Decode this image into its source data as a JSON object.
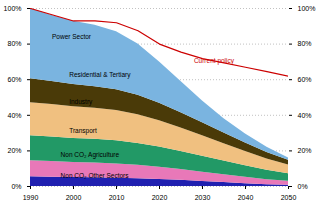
{
  "chart_data": {
    "type": "area",
    "stacked": true,
    "grid": true,
    "x": [
      1990,
      1995,
      2000,
      2005,
      2010,
      2015,
      2020,
      2025,
      2030,
      2035,
      2040,
      2045,
      2050
    ],
    "xlim": [
      1990,
      2050
    ],
    "xticks": [
      1990,
      2000,
      2010,
      2020,
      2030,
      2040,
      2050
    ],
    "ylim": [
      0.0,
      1.0
    ],
    "yticks": [
      {
        "value": 0.0,
        "label": "0%"
      },
      {
        "value": 0.2,
        "label": "20%"
      },
      {
        "value": 0.4,
        "label": "40%"
      },
      {
        "value": 0.6,
        "label": "60%"
      },
      {
        "value": 0.8,
        "label": "80%"
      },
      {
        "value": 1.0,
        "label": "100%"
      }
    ],
    "y2lim": [
      0.0,
      1.0
    ],
    "y2ticks": [
      {
        "value": 0.0,
        "label": "0%"
      },
      {
        "value": 0.2,
        "label": "20%"
      },
      {
        "value": 0.4,
        "label": "40%"
      },
      {
        "value": 0.6,
        "label": "60%"
      },
      {
        "value": 0.8,
        "label": "80%"
      },
      {
        "value": 1.0,
        "label": "100%"
      }
    ],
    "series": [
      {
        "name": "Non CO₂ Other Sectors",
        "type": "area",
        "color": "#2020b0",
        "values": [
          0.055,
          0.052,
          0.05,
          0.049,
          0.047,
          0.044,
          0.04,
          0.035,
          0.028,
          0.022,
          0.016,
          0.01,
          0.007
        ]
      },
      {
        "name": "Non CO₂ Agriculture",
        "type": "area",
        "color": "#e878b8",
        "values": [
          0.09,
          0.088,
          0.085,
          0.083,
          0.08,
          0.075,
          0.068,
          0.06,
          0.052,
          0.044,
          0.036,
          0.028,
          0.022
        ]
      },
      {
        "name": "Transport",
        "type": "area",
        "color": "#229966",
        "values": [
          0.14,
          0.138,
          0.135,
          0.133,
          0.13,
          0.123,
          0.114,
          0.102,
          0.09,
          0.077,
          0.065,
          0.053,
          0.042
        ]
      },
      {
        "name": "Industry",
        "type": "area",
        "color": "#f0c080",
        "values": [
          0.185,
          0.182,
          0.178,
          0.174,
          0.17,
          0.161,
          0.148,
          0.132,
          0.115,
          0.097,
          0.08,
          0.064,
          0.05
        ]
      },
      {
        "name": "Residential & Tertiary",
        "type": "area",
        "color": "#4a3a08",
        "values": [
          0.135,
          0.13,
          0.125,
          0.122,
          0.117,
          0.109,
          0.098,
          0.086,
          0.073,
          0.06,
          0.047,
          0.036,
          0.026
        ]
      },
      {
        "name": "Power Sector",
        "type": "area",
        "color": "#7ab4e0",
        "values": [
          0.395,
          0.37,
          0.355,
          0.345,
          0.326,
          0.288,
          0.232,
          0.175,
          0.122,
          0.08,
          0.051,
          0.029,
          0.013
        ]
      },
      {
        "name": "Current policy",
        "type": "line",
        "color": "#cc0000",
        "values": [
          1.0,
          0.965,
          0.93,
          0.93,
          0.92,
          0.875,
          0.8,
          0.755,
          0.718,
          0.695,
          0.67,
          0.645,
          0.62
        ]
      }
    ],
    "annotations": [
      {
        "text": "Power Sector",
        "x": 1995,
        "y": 0.84,
        "color": "black"
      },
      {
        "text": "Residential & Tertiary",
        "x": 1999,
        "y": 0.625,
        "color": "black"
      },
      {
        "text": "Industry",
        "x": 1999,
        "y": 0.475,
        "color": "black"
      },
      {
        "text": "Transport",
        "x": 1999,
        "y": 0.315,
        "color": "black"
      },
      {
        "text": "Non CO₂ Agriculture",
        "x": 1997,
        "y": 0.175,
        "color": "black"
      },
      {
        "text": "Non CO₂ Other Sectors",
        "x": 1997,
        "y": 0.06,
        "color": "black"
      },
      {
        "text": "Current policy",
        "x": 2028,
        "y": 0.695,
        "color": "#cc0000"
      }
    ]
  }
}
